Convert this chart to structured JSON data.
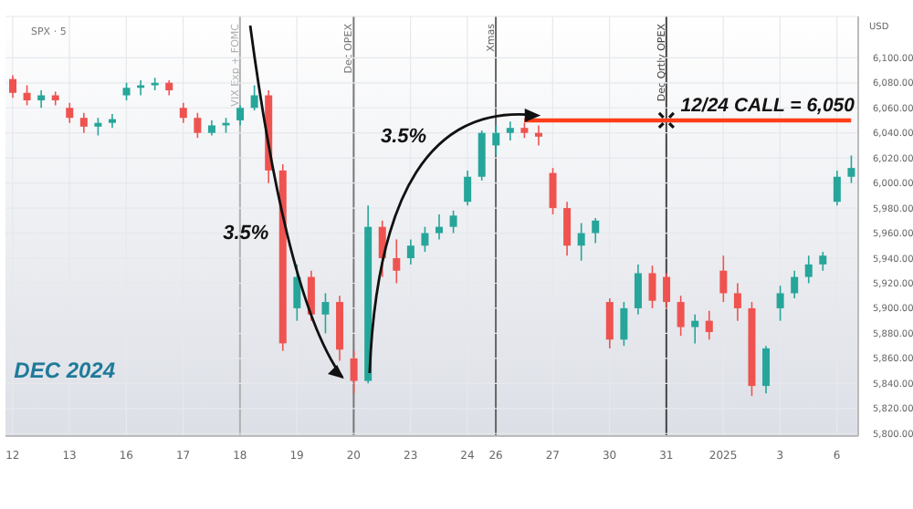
{
  "chart_data": {
    "type": "candlestick",
    "title": "SPX · 5",
    "ylabel": "USD",
    "categories": [
      "12",
      null,
      null,
      null,
      "13",
      null,
      null,
      null,
      "16",
      null,
      null,
      null,
      "17",
      null,
      null,
      null,
      "18",
      null,
      null,
      null,
      "19",
      null,
      null,
      null,
      "20",
      null,
      null,
      null,
      "23",
      null,
      null,
      null,
      "24",
      null,
      "26",
      null,
      null,
      null,
      "27",
      null,
      null,
      null,
      "30",
      null,
      null,
      null,
      "31",
      null,
      null,
      null,
      "2025",
      null,
      null,
      null,
      "3",
      null,
      null,
      null,
      "6",
      null
    ],
    "ohlc": [
      [
        6083,
        6086,
        6068,
        6072
      ],
      [
        6072,
        6078,
        6062,
        6066
      ],
      [
        6066,
        6074,
        6060,
        6070
      ],
      [
        6070,
        6073,
        6062,
        6066
      ],
      [
        6060,
        6064,
        6048,
        6052
      ],
      [
        6052,
        6056,
        6040,
        6045
      ],
      [
        6045,
        6052,
        6038,
        6048
      ],
      [
        6048,
        6055,
        6044,
        6051
      ],
      [
        6070,
        6080,
        6066,
        6076
      ],
      [
        6076,
        6082,
        6070,
        6078
      ],
      [
        6078,
        6084,
        6074,
        6080
      ],
      [
        6080,
        6082,
        6070,
        6074
      ],
      [
        6060,
        6064,
        6048,
        6052
      ],
      [
        6052,
        6056,
        6036,
        6040
      ],
      [
        6040,
        6050,
        6038,
        6046
      ],
      [
        6046,
        6052,
        6040,
        6048
      ],
      [
        6050,
        6062,
        6046,
        6060
      ],
      [
        6060,
        6078,
        6058,
        6070
      ],
      [
        6070,
        6074,
        6000,
        6010
      ],
      [
        6010,
        6015,
        5866,
        5872
      ],
      [
        5900,
        5935,
        5890,
        5925
      ],
      [
        5925,
        5930,
        5890,
        5895
      ],
      [
        5895,
        5912,
        5880,
        5905
      ],
      [
        5905,
        5910,
        5858,
        5867
      ],
      [
        5860,
        5866,
        5832,
        5842
      ],
      [
        5842,
        5982,
        5840,
        5965
      ],
      [
        5965,
        5970,
        5925,
        5940
      ],
      [
        5940,
        5955,
        5920,
        5930
      ],
      [
        5940,
        5955,
        5935,
        5950
      ],
      [
        5950,
        5965,
        5945,
        5960
      ],
      [
        5960,
        5975,
        5955,
        5965
      ],
      [
        5965,
        5978,
        5960,
        5974
      ],
      [
        5985,
        6010,
        5982,
        6005
      ],
      [
        6005,
        6042,
        6002,
        6040
      ],
      [
        6030,
        6046,
        6022,
        6040
      ],
      [
        6040,
        6049,
        6034,
        6044
      ],
      [
        6044,
        6048,
        6036,
        6040
      ],
      [
        6040,
        6046,
        6030,
        6037
      ],
      [
        6008,
        6012,
        5975,
        5980
      ],
      [
        5980,
        5985,
        5942,
        5950
      ],
      [
        5950,
        5968,
        5938,
        5960
      ],
      [
        5960,
        5972,
        5952,
        5970
      ],
      [
        5905,
        5908,
        5868,
        5875
      ],
      [
        5875,
        5905,
        5870,
        5900
      ],
      [
        5900,
        5935,
        5895,
        5928
      ],
      [
        5928,
        5934,
        5900,
        5906
      ],
      [
        5925,
        5928,
        5900,
        5905
      ],
      [
        5905,
        5910,
        5878,
        5885
      ],
      [
        5885,
        5895,
        5872,
        5890
      ],
      [
        5890,
        5898,
        5875,
        5881
      ],
      [
        5930,
        5942,
        5905,
        5912
      ],
      [
        5912,
        5920,
        5890,
        5900
      ],
      [
        5900,
        5905,
        5830,
        5838
      ],
      [
        5838,
        5870,
        5832,
        5868
      ],
      [
        5900,
        5918,
        5890,
        5912
      ],
      [
        5912,
        5930,
        5908,
        5925
      ],
      [
        5925,
        5942,
        5920,
        5935
      ],
      [
        5935,
        5945,
        5930,
        5942
      ],
      [
        5985,
        6010,
        5982,
        6005
      ],
      [
        6005,
        6022,
        6000,
        6012
      ]
    ],
    "colors": [
      "#ef5350",
      "#ef5350",
      "#26a69a",
      "#ef5350",
      "#ef5350",
      "#ef5350",
      "#26a69a",
      "#26a69a",
      "#26a69a",
      "#26a69a",
      "#26a69a",
      "#ef5350",
      "#ef5350",
      "#ef5350",
      "#26a69a",
      "#26a69a",
      "#26a69a",
      "#26a69a",
      "#ef5350",
      "#ef5350",
      "#26a69a",
      "#ef5350",
      "#26a69a",
      "#ef5350",
      "#ef5350",
      "#26a69a",
      "#ef5350",
      "#ef5350",
      "#26a69a",
      "#26a69a",
      "#26a69a",
      "#26a69a",
      "#26a69a",
      "#26a69a",
      "#26a69a",
      "#26a69a",
      "#ef5350",
      "#ef5350",
      "#ef5350",
      "#ef5350",
      "#26a69a",
      "#26a69a",
      "#ef5350",
      "#26a69a",
      "#26a69a",
      "#ef5350",
      "#ef5350",
      "#ef5350",
      "#26a69a",
      "#ef5350",
      "#ef5350",
      "#ef5350",
      "#ef5350",
      "#26a69a",
      "#26a69a",
      "#26a69a",
      "#26a69a",
      "#26a69a",
      "#26a69a",
      "#26a69a"
    ],
    "series": [
      {
        "type": "line",
        "color": "#ff3d1a",
        "values": [
          null,
          null,
          null,
          null,
          null,
          null,
          null,
          null,
          null,
          null,
          null,
          null,
          null,
          null,
          null,
          null,
          null,
          null,
          null,
          null,
          null,
          null,
          null,
          null,
          null,
          null,
          null,
          null,
          null,
          null,
          null,
          null,
          null,
          null,
          null,
          null,
          6050,
          6050,
          6050,
          6050,
          6050,
          6050,
          6050,
          6050,
          6050,
          6050,
          6050,
          6050,
          6050,
          6050,
          6050,
          6050,
          6050,
          6050,
          6050,
          6050,
          6050,
          6050,
          6050,
          6050
        ]
      }
    ],
    "ylim": [
      5798,
      6133
    ],
    "yticks": [
      {
        "value": 5800,
        "label": "5,800.00"
      },
      {
        "value": 5820,
        "label": "5,820.00"
      },
      {
        "value": 5840,
        "label": "5,840.00"
      },
      {
        "value": 5860,
        "label": "5,860.00"
      },
      {
        "value": 5880,
        "label": "5,880.00"
      },
      {
        "value": 5900,
        "label": "5,900.00"
      },
      {
        "value": 5920,
        "label": "5,920.00"
      },
      {
        "value": 5940,
        "label": "5,940.00"
      },
      {
        "value": 5960,
        "label": "5,960.00"
      },
      {
        "value": 5980,
        "label": "5,980.00"
      },
      {
        "value": 6000,
        "label": "6,000.00"
      },
      {
        "value": 6020,
        "label": "6,020.00"
      },
      {
        "value": 6040,
        "label": "6,040.00"
      },
      {
        "value": 6060,
        "label": "6,060.00"
      },
      {
        "value": 6080,
        "label": "6,080.00"
      },
      {
        "value": 6100,
        "label": "6,100.00"
      }
    ],
    "grid": true,
    "ref_lines": [
      {
        "axis": "x",
        "value": "18",
        "label": "VIX Exp + FOMC",
        "color": "#b0b0b0"
      },
      {
        "axis": "x",
        "value": "20",
        "label": "Dec OPEX",
        "color": "#777777"
      },
      {
        "axis": "x",
        "value": "26",
        "label": "Xmas",
        "color": "#666666"
      },
      {
        "axis": "x",
        "value": "31",
        "label": "Dec Qrtly OPEX",
        "color": "#444444"
      }
    ],
    "annotations": [
      "3.5%",
      "3.5%",
      {
        "text": "12/24 CALL = 6,050",
        "y": 6050
      },
      "DEC 2024"
    ]
  }
}
